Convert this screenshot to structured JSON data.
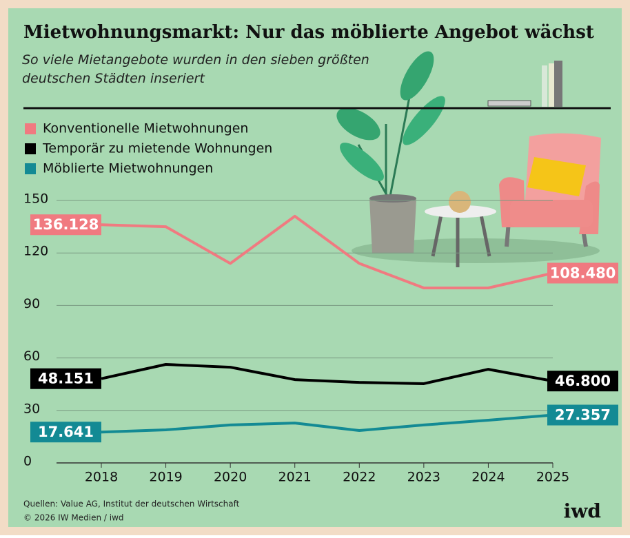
{
  "chart_data": {
    "type": "line",
    "title": "Mietwohnungsmarkt: Nur das möblierte Angebot wächst",
    "subtitle": "So viele Mietangebote wurden in den sieben größten deutschen Städten inseriert",
    "categories": [
      "2018",
      "2019",
      "2020",
      "2021",
      "2022",
      "2023",
      "2024",
      "2025"
    ],
    "series": [
      {
        "name": "Konventionelle Mietwohnungen",
        "color": "#f07a80",
        "values": [
          136.128,
          135,
          114,
          141,
          114,
          100,
          100,
          108.48
        ],
        "value_labels": [
          "136.128",
          null,
          null,
          null,
          null,
          null,
          null,
          "108.480"
        ]
      },
      {
        "name": "Temporär zu mietende Wohnungen",
        "color": "#000000",
        "values": [
          48.151,
          56.3,
          54.7,
          47.6,
          46,
          45.3,
          53.5,
          46.8
        ],
        "value_labels": [
          "48.151",
          null,
          null,
          null,
          null,
          null,
          null,
          "46.800"
        ]
      },
      {
        "name": "Möblierte Mietwohnungen",
        "color": "#138a94",
        "values": [
          17.641,
          18.9,
          21.7,
          22.8,
          18.5,
          21.7,
          24.4,
          27.357
        ],
        "value_labels": [
          "17.641",
          null,
          null,
          null,
          null,
          null,
          null,
          "27.357"
        ]
      }
    ],
    "ylim": [
      0,
      150
    ],
    "yticks": [
      0,
      30,
      60,
      90,
      120,
      150
    ],
    "grid": true,
    "source": "Quellen: Value AG, Institut der deutschen Wirtschaft",
    "copyright": "© 2026 IW Medien / iwd",
    "logo": "iwd"
  }
}
